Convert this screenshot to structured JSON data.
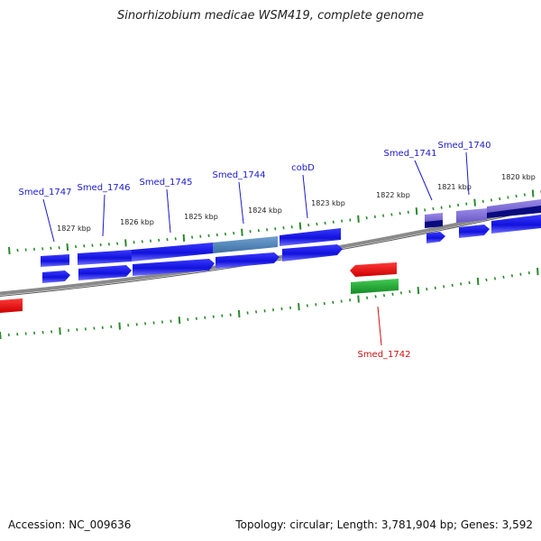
{
  "title": "Sinorhizobium medicae WSM419, complete genome",
  "footer": {
    "accession": "Accession: NC_009636",
    "summary": "Topology: circular; Length: 3,781,904 bp; Genes: 3,592"
  },
  "colors": {
    "backbone": "#8a8a8a",
    "tick": "#2a8a2a",
    "cds": "#1a1aee",
    "cds_highlight": "#4f86c0",
    "cds_light": "#7c6ad8",
    "cds_dark": "#0a0a80",
    "rna": "#ee1111",
    "gene_green": "#22aa33",
    "label_blue": "#1a1acc",
    "label_red": "#cc1111"
  },
  "kbp_labels": [
    "1827 kbp",
    "1826 kbp",
    "1825 kbp",
    "1824 kbp",
    "1823 kbp",
    "1822 kbp",
    "1821 kbp",
    "1820 kbp"
  ],
  "gene_labels": [
    {
      "text": "Smed_1747",
      "color": "blue"
    },
    {
      "text": "Smed_1746",
      "color": "blue"
    },
    {
      "text": "Smed_1745",
      "color": "blue"
    },
    {
      "text": "Smed_1744",
      "color": "blue"
    },
    {
      "text": "cobD",
      "color": "blue"
    },
    {
      "text": "Smed_1741",
      "color": "blue"
    },
    {
      "text": "Smed_1740",
      "color": "blue"
    },
    {
      "text": "Smed_1742",
      "color": "red"
    }
  ]
}
